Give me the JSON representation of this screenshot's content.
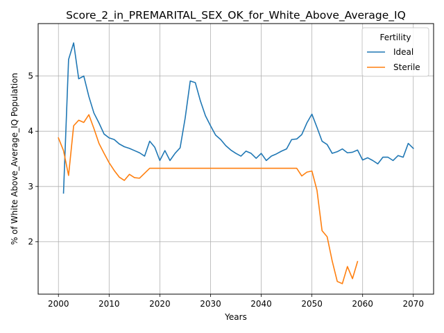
{
  "chart_data": {
    "type": "line",
    "title": "Score_2_in_PREMARITAL_SEX_OK_for_White_Above_Average_IQ",
    "xlabel": "Years",
    "ylabel": "% of White Above_Average_IQ Population",
    "xlim": [
      1996,
      2074
    ],
    "ylim": [
      1.05,
      5.95
    ],
    "xticks": [
      2000,
      2010,
      2020,
      2030,
      2040,
      2050,
      2060,
      2070
    ],
    "yticks": [
      2,
      3,
      4,
      5
    ],
    "grid": true,
    "legend": {
      "title": "Fertility",
      "placement": "top-right"
    },
    "series": [
      {
        "name": "Ideal",
        "color": "#1f77b4",
        "x": [
          2001,
          2002,
          2003,
          2004,
          2005,
          2006,
          2007,
          2008,
          2009,
          2010,
          2011,
          2012,
          2013,
          2014,
          2015,
          2016,
          2017,
          2018,
          2019,
          2020,
          2021,
          2022,
          2023,
          2024,
          2025,
          2026,
          2027,
          2028,
          2029,
          2030,
          2031,
          2032,
          2033,
          2034,
          2035,
          2036,
          2037,
          2038,
          2039,
          2040,
          2041,
          2042,
          2043,
          2044,
          2045,
          2046,
          2047,
          2048,
          2049,
          2050,
          2051,
          2052,
          2053,
          2054,
          2055,
          2056,
          2057,
          2058,
          2059,
          2060,
          2061,
          2062,
          2063,
          2064,
          2065,
          2066,
          2067,
          2068,
          2069,
          2070
        ],
        "values": [
          2.88,
          5.3,
          5.6,
          4.95,
          5.0,
          4.63,
          4.33,
          4.15,
          3.95,
          3.88,
          3.85,
          3.77,
          3.72,
          3.69,
          3.65,
          3.61,
          3.55,
          3.82,
          3.71,
          3.47,
          3.65,
          3.47,
          3.6,
          3.7,
          4.24,
          4.91,
          4.88,
          4.55,
          4.28,
          4.1,
          3.93,
          3.85,
          3.74,
          3.66,
          3.6,
          3.55,
          3.64,
          3.6,
          3.51,
          3.6,
          3.47,
          3.55,
          3.59,
          3.64,
          3.68,
          3.85,
          3.86,
          3.94,
          4.15,
          4.31,
          4.07,
          3.82,
          3.76,
          3.6,
          3.63,
          3.68,
          3.61,
          3.62,
          3.66,
          3.48,
          3.52,
          3.47,
          3.41,
          3.53,
          3.53,
          3.47,
          3.56,
          3.53,
          3.78,
          3.69
        ]
      },
      {
        "name": "Sterile",
        "color": "#ff7f0e",
        "x": [
          2000,
          2001,
          2002,
          2003,
          2004,
          2005,
          2006,
          2007,
          2008,
          2009,
          2010,
          2011,
          2012,
          2013,
          2014,
          2015,
          2016,
          2017,
          2018,
          2019,
          2020,
          2021,
          2022,
          2023,
          2024,
          2025,
          2026,
          2027,
          2028,
          2029,
          2030,
          2031,
          2032,
          2033,
          2034,
          2035,
          2036,
          2037,
          2038,
          2039,
          2040,
          2041,
          2042,
          2043,
          2044,
          2045,
          2046,
          2047,
          2048,
          2049,
          2050,
          2051,
          2052,
          2053,
          2054,
          2055,
          2056,
          2057,
          2058,
          2059
        ],
        "values": [
          3.88,
          3.65,
          3.2,
          4.1,
          4.2,
          4.16,
          4.3,
          4.05,
          3.78,
          3.6,
          3.43,
          3.29,
          3.17,
          3.11,
          3.22,
          3.16,
          3.15,
          3.24,
          3.33,
          3.33,
          3.33,
          3.33,
          3.33,
          3.33,
          3.33,
          3.33,
          3.33,
          3.33,
          3.33,
          3.33,
          3.33,
          3.33,
          3.33,
          3.33,
          3.33,
          3.33,
          3.33,
          3.33,
          3.33,
          3.33,
          3.33,
          3.33,
          3.33,
          3.33,
          3.33,
          3.33,
          3.33,
          3.33,
          3.19,
          3.26,
          3.28,
          2.93,
          2.2,
          2.09,
          1.65,
          1.28,
          1.24,
          1.55,
          1.33,
          1.64
        ]
      }
    ]
  }
}
